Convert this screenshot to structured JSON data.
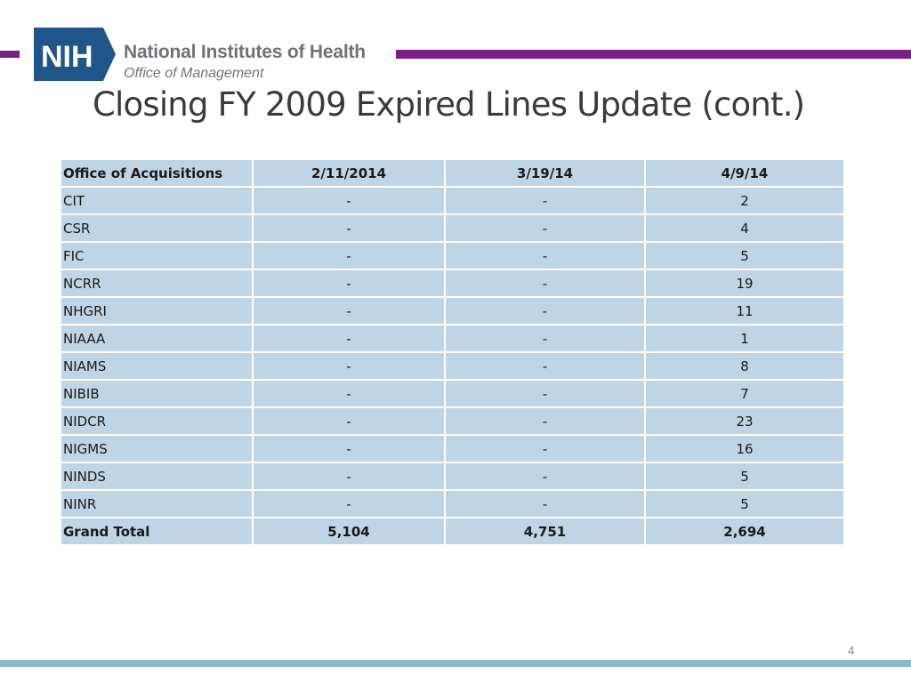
{
  "header": {
    "logo_abbrev": "NIH",
    "logo_name": "National Institutes of Health",
    "logo_subtitle": "Office of Management"
  },
  "title": "Closing FY 2009 Expired Lines Update (cont.)",
  "colors": {
    "brand_purple": "#7a1f83",
    "logo_blue": "#20558a",
    "logo_gray": "#6f7378",
    "table_fill": "#bfd4e5",
    "footer_bar": "#8db6cf"
  },
  "table": {
    "headers": [
      "Office of Acquisitions",
      "2/11/2014",
      "3/19/14",
      "4/9/14"
    ],
    "rows": [
      [
        "CIT",
        "-",
        "-",
        "2"
      ],
      [
        "CSR",
        "-",
        "-",
        "4"
      ],
      [
        "FIC",
        "-",
        "-",
        "5"
      ],
      [
        "NCRR",
        "-",
        "-",
        "19"
      ],
      [
        "NHGRI",
        "-",
        "-",
        "11"
      ],
      [
        "NIAAA",
        "-",
        "-",
        "1"
      ],
      [
        "NIAMS",
        "-",
        "-",
        "8"
      ],
      [
        "NIBIB",
        "-",
        "-",
        "7"
      ],
      [
        "NIDCR",
        "-",
        "-",
        "23"
      ],
      [
        "NIGMS",
        "-",
        "-",
        "16"
      ],
      [
        "NINDS",
        "-",
        "-",
        "5"
      ],
      [
        "NINR",
        "-",
        "-",
        "5"
      ]
    ],
    "total": [
      "Grand Total",
      "5,104",
      "4,751",
      "2,694"
    ]
  },
  "page_number": "4"
}
